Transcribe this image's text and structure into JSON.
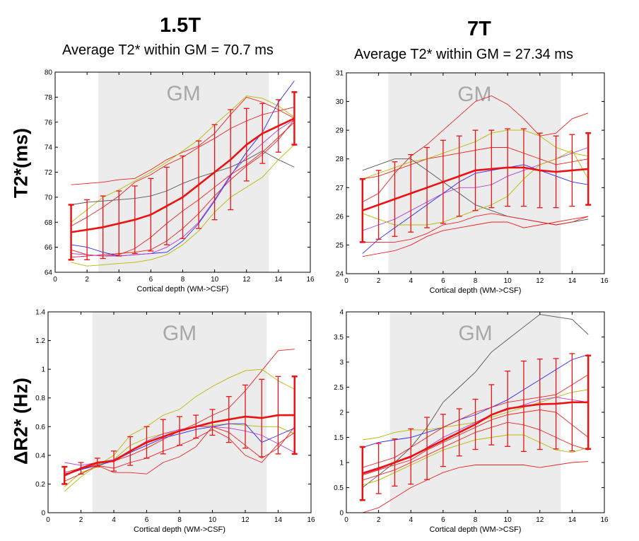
{
  "headers": {
    "left_title": "1.5T",
    "left_subtitle": "Average T2* within GM = 70.7 ms",
    "right_title": "7T",
    "right_subtitle": "Average T2* within GM = 27.34 ms",
    "row1_ylabel": "T2*(ms)",
    "row2_ylabel": "ΔR2* (Hz)"
  },
  "colors": {
    "mean": "#ee1111",
    "subject_red": "#ee2222",
    "yellow": "#b8b800",
    "blue": "#2a2af0",
    "purple": "#b040d0",
    "gray": "#555555",
    "gm_band": "#ececec"
  },
  "chart_data": [
    {
      "id": "t2_15t",
      "type": "line",
      "region_label": "GM",
      "gm_range": [
        2.7,
        13.4
      ],
      "xlabel": "Cortical depth (WM->CSF)",
      "xlim": [
        0,
        16
      ],
      "ylim": [
        64,
        80
      ],
      "xticks": [
        0,
        2,
        4,
        6,
        8,
        10,
        12,
        14,
        16
      ],
      "yticks": [
        64,
        66,
        68,
        70,
        72,
        74,
        76,
        78,
        80
      ],
      "x": [
        1,
        2,
        3,
        4,
        5,
        6,
        7,
        8,
        9,
        10,
        11,
        12,
        13,
        14,
        15
      ],
      "mean": [
        67.2,
        67.4,
        67.6,
        67.9,
        68.2,
        68.6,
        69.3,
        70.0,
        71.0,
        72.0,
        73.0,
        74.2,
        75.1,
        75.7,
        76.3
      ],
      "err": [
        2.2,
        2.4,
        2.5,
        2.6,
        2.7,
        2.9,
        3.1,
        3.3,
        3.5,
        3.8,
        4.0,
        2.9,
        2.4,
        2.1,
        2.1
      ],
      "series": [
        {
          "name": "s1",
          "color": "red",
          "values": [
            71.0,
            71.1,
            71.2,
            71.4,
            71.5,
            72.2,
            73.0,
            73.6,
            74.1,
            75.1,
            76.6,
            78.0,
            77.6,
            77.0,
            76.3
          ]
        },
        {
          "name": "s2",
          "color": "red",
          "values": [
            67.7,
            68.4,
            69.2,
            70.1,
            71.2,
            71.8,
            72.6,
            73.2,
            74.0,
            74.7,
            75.5,
            76.1,
            76.6,
            76.9,
            77.2
          ]
        },
        {
          "name": "s3",
          "color": "yellow",
          "values": [
            68.0,
            69.0,
            70.0,
            70.6,
            71.3,
            72.0,
            72.8,
            73.7,
            74.6,
            75.8,
            76.9,
            78.1,
            77.9,
            77.3,
            76.4
          ]
        },
        {
          "name": "s4",
          "color": "gray",
          "values": [
            69.4,
            69.6,
            69.7,
            69.8,
            69.9,
            70.1,
            70.5,
            71.1,
            71.6,
            72.0,
            72.4,
            73.0,
            73.7,
            73.0,
            72.4
          ]
        },
        {
          "name": "s5",
          "color": "red",
          "values": [
            65.2,
            65.3,
            65.4,
            65.5,
            65.6,
            65.8,
            66.5,
            67.5,
            68.7,
            70.1,
            71.4,
            72.5,
            73.4,
            74.6,
            76.2
          ]
        },
        {
          "name": "s6",
          "color": "red",
          "values": [
            65.8,
            65.4,
            65.3,
            65.4,
            65.9,
            66.8,
            67.9,
            68.9,
            69.8,
            70.8,
            71.8,
            72.6,
            73.6,
            74.8,
            76.0
          ]
        },
        {
          "name": "s7",
          "color": "blue",
          "values": [
            66.2,
            66.0,
            65.6,
            65.3,
            65.4,
            65.5,
            65.6,
            66.5,
            67.9,
            69.7,
            71.7,
            73.6,
            75.2,
            77.6,
            79.3
          ]
        },
        {
          "name": "s8",
          "color": "purple",
          "values": [
            65.5,
            65.4,
            65.3,
            65.3,
            65.4,
            65.5,
            66.0,
            66.8,
            68.0,
            69.8,
            71.8,
            73.2,
            74.3,
            75.4,
            76.2
          ]
        },
        {
          "name": "s9",
          "color": "yellow",
          "values": [
            64.8,
            64.5,
            64.6,
            64.7,
            64.8,
            65.0,
            65.4,
            66.2,
            67.3,
            68.8,
            70.0,
            70.8,
            71.6,
            73.0,
            74.2
          ]
        }
      ]
    },
    {
      "id": "t2_7t",
      "type": "line",
      "region_label": "GM",
      "gm_range": [
        2.6,
        13.3
      ],
      "xlabel": "Cortical depth (WM->CSF)",
      "xlim": [
        0,
        16
      ],
      "ylim": [
        24,
        31
      ],
      "xticks": [
        0,
        2,
        4,
        6,
        8,
        10,
        12,
        14,
        16
      ],
      "yticks": [
        24,
        25,
        26,
        27,
        28,
        29,
        30,
        31
      ],
      "x": [
        1,
        2,
        3,
        4,
        5,
        6,
        7,
        8,
        9,
        10,
        11,
        12,
        13,
        14,
        15
      ],
      "mean": [
        26.2,
        26.4,
        26.6,
        26.8,
        27.0,
        27.2,
        27.4,
        27.6,
        27.65,
        27.7,
        27.7,
        27.6,
        27.55,
        27.6,
        27.65
      ],
      "err": [
        1.1,
        1.2,
        1.3,
        1.35,
        1.4,
        1.45,
        1.4,
        1.4,
        1.35,
        1.35,
        1.35,
        1.3,
        1.25,
        1.25,
        1.25
      ],
      "series": [
        {
          "name": "s1",
          "color": "red",
          "values": [
            26.5,
            26.8,
            27.5,
            28.1,
            28.5,
            29.0,
            29.5,
            30.0,
            30.2,
            29.9,
            29.4,
            28.8,
            28.9,
            29.4,
            29.6
          ]
        },
        {
          "name": "s2",
          "color": "red",
          "values": [
            27.3,
            27.4,
            27.6,
            27.8,
            28.0,
            28.1,
            28.2,
            28.3,
            28.4,
            28.4,
            28.2,
            28.0,
            27.8,
            27.9,
            28.0
          ]
        },
        {
          "name": "s3",
          "color": "yellow",
          "values": [
            27.3,
            27.5,
            27.7,
            27.9,
            28.0,
            28.2,
            28.4,
            28.6,
            28.9,
            29.0,
            29.0,
            28.8,
            28.4,
            28.2,
            28.1
          ]
        },
        {
          "name": "s4",
          "color": "gray",
          "values": [
            27.6,
            27.8,
            28.0,
            28.0,
            27.6,
            27.2,
            26.8,
            26.4,
            26.2,
            26.0,
            25.9,
            25.8,
            25.7,
            25.8,
            25.9
          ]
        },
        {
          "name": "s5",
          "color": "blue",
          "values": [
            24.7,
            25.2,
            25.6,
            26.0,
            26.4,
            26.8,
            27.2,
            27.5,
            27.6,
            27.7,
            27.8,
            27.6,
            27.4,
            27.2,
            27.1
          ]
        },
        {
          "name": "s6",
          "color": "purple",
          "values": [
            25.5,
            25.7,
            25.9,
            26.2,
            26.5,
            26.8,
            27.0,
            27.0,
            27.1,
            27.4,
            27.6,
            27.8,
            28.0,
            28.2,
            28.4
          ]
        },
        {
          "name": "s7",
          "color": "yellow",
          "values": [
            26.1,
            25.9,
            25.7,
            25.7,
            25.7,
            25.8,
            26.0,
            26.2,
            26.4,
            26.7,
            27.3,
            27.8,
            28.0,
            28.3,
            27.3
          ]
        },
        {
          "name": "s8",
          "color": "red",
          "values": [
            25.1,
            25.1,
            25.1,
            25.2,
            25.4,
            25.7,
            25.8,
            26.0,
            26.1,
            26.0,
            25.9,
            25.8,
            25.7,
            25.8,
            26.0
          ]
        },
        {
          "name": "s9",
          "color": "red",
          "values": [
            24.6,
            24.7,
            24.8,
            25.0,
            25.3,
            25.5,
            25.6,
            25.7,
            25.8,
            25.8,
            25.6,
            25.7,
            25.8,
            25.9,
            26.0
          ]
        }
      ]
    },
    {
      "id": "dr2_15t",
      "type": "line",
      "region_label": "GM",
      "gm_range": [
        2.7,
        13.3
      ],
      "xlabel": "Cortical depth (WM->CSF)",
      "xlim": [
        0,
        16
      ],
      "ylim": [
        0,
        1.4
      ],
      "xticks": [
        0,
        2,
        4,
        6,
        8,
        10,
        12,
        14,
        16
      ],
      "yticks": [
        0,
        0.2,
        0.4,
        0.6,
        0.8,
        1,
        1.2,
        1.4
      ],
      "x": [
        1,
        2,
        3,
        4,
        5,
        6,
        7,
        8,
        9,
        10,
        11,
        12,
        13,
        14,
        15
      ],
      "mean": [
        0.26,
        0.31,
        0.35,
        0.36,
        0.43,
        0.49,
        0.53,
        0.57,
        0.6,
        0.63,
        0.65,
        0.67,
        0.66,
        0.68,
        0.68
      ],
      "err": [
        0.06,
        0.04,
        0.03,
        0.07,
        0.1,
        0.11,
        0.12,
        0.1,
        0.08,
        0.09,
        0.16,
        0.22,
        0.27,
        0.27,
        0.27
      ],
      "series": [
        {
          "name": "s1",
          "color": "red",
          "values": [
            0.26,
            0.3,
            0.34,
            0.36,
            0.4,
            0.45,
            0.51,
            0.57,
            0.62,
            0.68,
            0.73,
            0.85,
            0.99,
            1.13,
            1.14
          ]
        },
        {
          "name": "s2",
          "color": "yellow",
          "values": [
            0.15,
            0.25,
            0.33,
            0.4,
            0.54,
            0.6,
            0.68,
            0.72,
            0.81,
            0.88,
            0.94,
            0.99,
            1.0,
            0.92,
            0.86
          ]
        },
        {
          "name": "s3",
          "color": "yellow",
          "values": [
            0.18,
            0.28,
            0.32,
            0.37,
            0.47,
            0.52,
            0.55,
            0.57,
            0.6,
            0.61,
            0.62,
            0.61,
            0.6,
            0.6,
            0.55
          ]
        },
        {
          "name": "s4",
          "color": "purple",
          "values": [
            0.35,
            0.33,
            0.35,
            0.37,
            0.43,
            0.5,
            0.55,
            0.58,
            0.6,
            0.6,
            0.59,
            0.57,
            0.54,
            0.48,
            0.42
          ]
        },
        {
          "name": "s5",
          "color": "blue",
          "values": [
            0.27,
            0.3,
            0.33,
            0.36,
            0.42,
            0.47,
            0.52,
            0.55,
            0.58,
            0.6,
            0.62,
            0.62,
            0.49,
            0.54,
            0.59
          ]
        },
        {
          "name": "s6",
          "color": "red",
          "values": [
            0.22,
            0.27,
            0.33,
            0.28,
            0.28,
            0.27,
            0.35,
            0.39,
            0.46,
            0.6,
            0.56,
            0.47,
            0.38,
            0.45,
            0.6
          ]
        },
        {
          "name": "s7",
          "color": "red",
          "values": [
            0.28,
            0.31,
            0.33,
            0.31,
            0.35,
            0.38,
            0.43,
            0.47,
            0.52,
            0.58,
            0.52,
            0.4,
            0.35,
            0.48,
            0.56
          ]
        }
      ]
    },
    {
      "id": "dr2_7t",
      "type": "line",
      "region_label": "GM",
      "gm_range": [
        2.7,
        13.3
      ],
      "xlabel": "Cortical depth (WM->CSF)",
      "xlim": [
        0,
        16
      ],
      "ylim": [
        0,
        4
      ],
      "xticks": [
        0,
        2,
        4,
        6,
        8,
        10,
        12,
        14,
        16
      ],
      "yticks": [
        0,
        0.5,
        1,
        1.5,
        2,
        2.5,
        3,
        3.5,
        4
      ],
      "x": [
        1,
        2,
        3,
        4,
        5,
        6,
        7,
        8,
        9,
        10,
        11,
        12,
        13,
        14,
        15
      ],
      "mean": [
        0.78,
        0.88,
        1.0,
        1.12,
        1.28,
        1.44,
        1.6,
        1.76,
        1.95,
        2.07,
        2.12,
        2.16,
        2.17,
        2.2,
        2.2
      ],
      "err": [
        0.53,
        0.5,
        0.47,
        0.55,
        0.62,
        0.52,
        0.47,
        0.5,
        0.6,
        0.75,
        0.9,
        0.9,
        0.9,
        0.97,
        0.93
      ],
      "series": [
        {
          "name": "s1",
          "color": "gray",
          "values": [
            0.5,
            0.75,
            1.0,
            1.3,
            1.7,
            2.2,
            2.5,
            2.8,
            3.2,
            3.45,
            3.7,
            3.95,
            3.9,
            3.85,
            3.55
          ]
        },
        {
          "name": "s2",
          "color": "blue",
          "values": [
            1.3,
            1.4,
            1.45,
            1.5,
            1.6,
            1.7,
            1.85,
            1.95,
            2.1,
            2.25,
            2.45,
            2.65,
            2.85,
            3.05,
            3.15
          ]
        },
        {
          "name": "s3",
          "color": "yellow",
          "values": [
            1.45,
            1.5,
            1.6,
            1.65,
            1.65,
            1.7,
            1.75,
            1.8,
            1.9,
            2.0,
            2.1,
            2.2,
            2.3,
            2.4,
            2.45
          ]
        },
        {
          "name": "s4",
          "color": "red",
          "values": [
            0.9,
            1.0,
            1.1,
            1.3,
            1.5,
            1.7,
            1.85,
            2.0,
            2.1,
            2.2,
            2.25,
            2.3,
            2.35,
            2.55,
            2.75
          ]
        },
        {
          "name": "s5",
          "color": "purple",
          "values": [
            0.8,
            0.9,
            1.0,
            1.1,
            1.3,
            1.5,
            1.65,
            1.8,
            1.95,
            2.05,
            2.15,
            2.25,
            2.3,
            2.25,
            2.2
          ]
        },
        {
          "name": "s6",
          "color": "red",
          "values": [
            0.75,
            0.85,
            0.95,
            1.05,
            1.25,
            1.4,
            1.55,
            1.7,
            1.85,
            1.95,
            2.0,
            2.05,
            2.0,
            1.75,
            1.5
          ]
        },
        {
          "name": "s7",
          "color": "yellow",
          "values": [
            0.55,
            0.65,
            0.8,
            0.95,
            1.1,
            1.25,
            1.35,
            1.45,
            1.5,
            1.55,
            1.55,
            1.4,
            1.25,
            1.2,
            1.3
          ]
        },
        {
          "name": "s8",
          "color": "red",
          "values": [
            0.65,
            0.75,
            0.85,
            1.0,
            1.15,
            1.3,
            1.45,
            1.6,
            1.7,
            1.8,
            1.75,
            1.65,
            1.5,
            1.35,
            1.25
          ]
        },
        {
          "name": "s9",
          "color": "red",
          "values": [
            0.0,
            0.1,
            0.3,
            0.5,
            0.65,
            0.8,
            0.9,
            0.95,
            0.95,
            0.95,
            0.95,
            0.9,
            0.95,
            1.0,
            1.02
          ]
        }
      ]
    }
  ]
}
